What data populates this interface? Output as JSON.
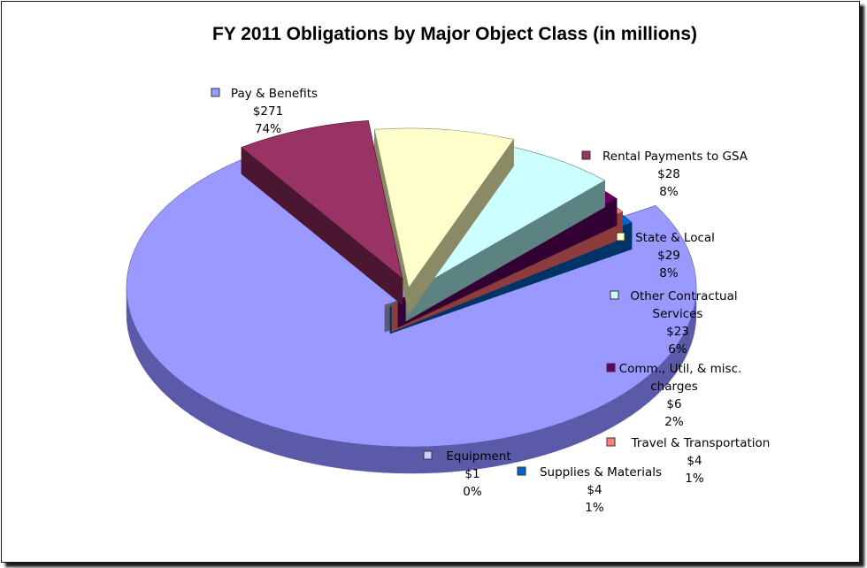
{
  "chart_data": {
    "type": "pie",
    "title": "FY 2011 Obligations by Major Object Class (in millions)",
    "slices": [
      {
        "name": "Pay & Benefits",
        "value": 271,
        "value_label": "$271",
        "percent_label": "74%",
        "color": "#9999ff",
        "dark": "#5a5aa8",
        "exploded": false,
        "legend_lines": [
          "Pay & Benefits"
        ]
      },
      {
        "name": "Rental Payments to GSA",
        "value": 28,
        "value_label": "$28",
        "percent_label": "8%",
        "color": "#993366",
        "dark": "#4a1630",
        "exploded": true,
        "legend_lines": [
          "Rental Payments to GSA"
        ]
      },
      {
        "name": "State & Local",
        "value": 29,
        "value_label": "$29",
        "percent_label": "8%",
        "color": "#ffffcc",
        "dark": "#8a8a66",
        "exploded": true,
        "legend_lines": [
          "State & Local"
        ]
      },
      {
        "name": "Other Contractual Services",
        "value": 23,
        "value_label": "$23",
        "percent_label": "6%",
        "color": "#ccffff",
        "dark": "#5d8282",
        "exploded": true,
        "legend_lines": [
          "Other Contractual",
          "Services"
        ]
      },
      {
        "name": "Comm., Util, & misc. charges",
        "value": 6,
        "value_label": "$6",
        "percent_label": "2%",
        "color": "#660066",
        "dark": "#330033",
        "exploded": true,
        "legend_lines": [
          "Comm., Util, & misc.",
          "charges"
        ]
      },
      {
        "name": "Travel & Transportation",
        "value": 4,
        "value_label": "$4",
        "percent_label": "1%",
        "color": "#ff8080",
        "dark": "#8c3c3c",
        "exploded": true,
        "legend_lines": [
          "Travel & Transportation"
        ]
      },
      {
        "name": "Supplies & Materials",
        "value": 4,
        "value_label": "$4",
        "percent_label": "1%",
        "color": "#0066cc",
        "dark": "#003366",
        "exploded": true,
        "legend_lines": [
          "Supplies & Materials"
        ]
      },
      {
        "name": "Equipment",
        "value": 1,
        "value_label": "$1",
        "percent_label": "0%",
        "color": "#ccccff",
        "dark": "#5a5a70",
        "exploded": true,
        "legend_lines": [
          "Equipment"
        ]
      }
    ]
  }
}
